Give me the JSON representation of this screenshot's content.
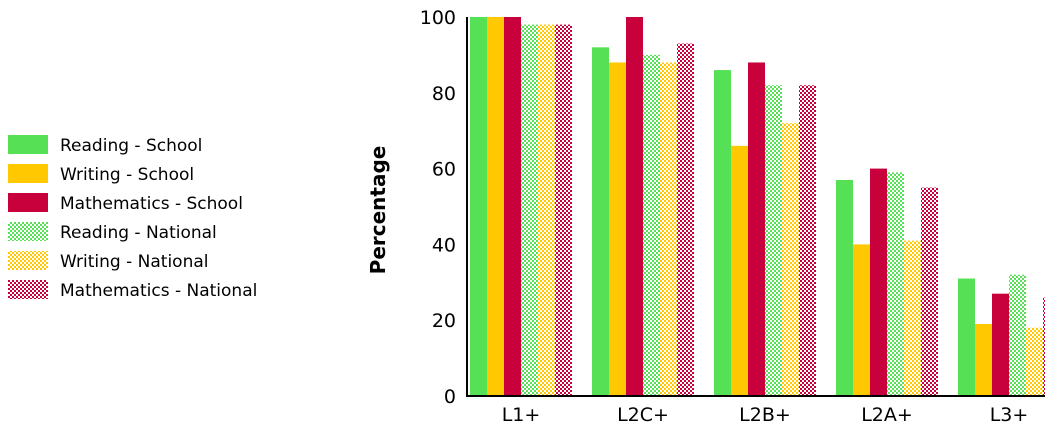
{
  "chart_data": {
    "type": "bar",
    "ylabel": "Percentage",
    "xlabel": "",
    "ylim": [
      0,
      100
    ],
    "yticks": [
      "0",
      "20",
      "40",
      "60",
      "80",
      "100"
    ],
    "categories": [
      "L1+",
      "L2C+",
      "L2B+",
      "L2A+",
      "L3+"
    ],
    "legend_position": "left",
    "series": [
      {
        "name": "Reading - School",
        "color": "#55e055",
        "pattern": "solid",
        "values": [
          100,
          92,
          86,
          57,
          31
        ]
      },
      {
        "name": "Writing - School",
        "color": "#ffc800",
        "pattern": "solid",
        "values": [
          100,
          88,
          66,
          40,
          19
        ]
      },
      {
        "name": "Mathematics - School",
        "color": "#c8003c",
        "pattern": "solid",
        "values": [
          100,
          100,
          88,
          60,
          27
        ]
      },
      {
        "name": "Reading - National",
        "color": "#55e055",
        "pattern": "checker",
        "values": [
          98,
          90,
          82,
          59,
          32
        ]
      },
      {
        "name": "Writing - National",
        "color": "#ffc800",
        "pattern": "checker",
        "values": [
          98,
          88,
          72,
          41,
          18
        ]
      },
      {
        "name": "Mathematics - National",
        "color": "#c8003c",
        "pattern": "checker",
        "values": [
          98,
          93,
          82,
          55,
          26
        ]
      }
    ]
  }
}
